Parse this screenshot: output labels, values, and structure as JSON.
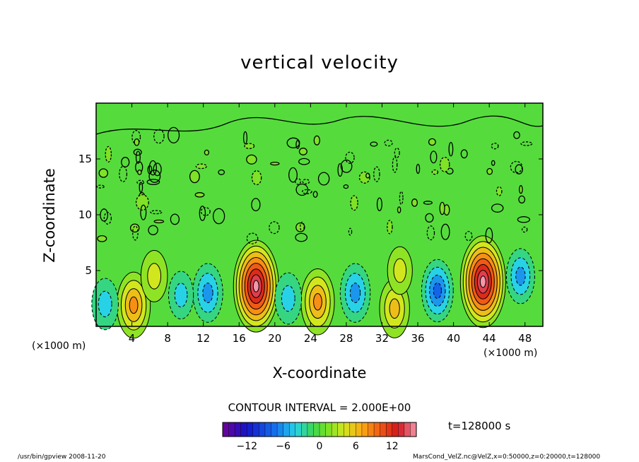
{
  "chart_data": {
    "type": "heatmap",
    "title": "vertical velocity",
    "xlabel": "X-coordinate",
    "ylabel": "Z-coordinate",
    "x_unit": "(×1000 m)",
    "y_unit": "(×1000 m)",
    "xlim": [
      0,
      50
    ],
    "ylim": [
      0,
      20
    ],
    "x_ticks": [
      "4",
      "8",
      "12",
      "16",
      "20",
      "24",
      "28",
      "32",
      "36",
      "40",
      "44",
      "48"
    ],
    "y_ticks": [
      "5",
      "10",
      "15"
    ],
    "contour_interval_label": "CONTOUR INTERVAL = 2.000E+00",
    "time_label": "t=128000 s",
    "colorbar": {
      "min": -16,
      "max": 16,
      "ticks": [
        "−12",
        "−6",
        "0",
        "6",
        "12"
      ]
    },
    "features": [
      {
        "x": 17.9,
        "z": 3.6,
        "w": 15,
        "type": "updraft"
      },
      {
        "x": 43.3,
        "z": 4.0,
        "w": 15,
        "type": "updraft"
      },
      {
        "x": 4.2,
        "z": 1.9,
        "w": 8,
        "type": "updraft"
      },
      {
        "x": 24.8,
        "z": 2.2,
        "w": 8,
        "type": "updraft"
      },
      {
        "x": 33.4,
        "z": 1.6,
        "w": 6,
        "type": "updraft"
      },
      {
        "x": 6.5,
        "z": 4.5,
        "w": 4,
        "type": "updraft"
      },
      {
        "x": 34.0,
        "z": 5.0,
        "w": 3,
        "type": "updraft"
      },
      {
        "x": 12.5,
        "z": 3.0,
        "w": -6,
        "type": "downdraft"
      },
      {
        "x": 29.0,
        "z": 3.0,
        "w": -6,
        "type": "downdraft"
      },
      {
        "x": 38.2,
        "z": 3.2,
        "w": -7,
        "type": "downdraft"
      },
      {
        "x": 47.5,
        "z": 4.5,
        "w": -5,
        "type": "downdraft"
      },
      {
        "x": 1.0,
        "z": 2.0,
        "w": -4,
        "type": "downdraft"
      },
      {
        "x": 21.5,
        "z": 2.5,
        "w": -4,
        "type": "downdraft"
      },
      {
        "x": 9.5,
        "z": 2.8,
        "w": -3,
        "type": "downdraft"
      }
    ]
  },
  "footer": {
    "left": "/usr/bin/gpview   2008-11-20",
    "right": "MarsCond_VelZ.nc@VelZ,x=0:50000,z=0:20000,t=128000"
  }
}
